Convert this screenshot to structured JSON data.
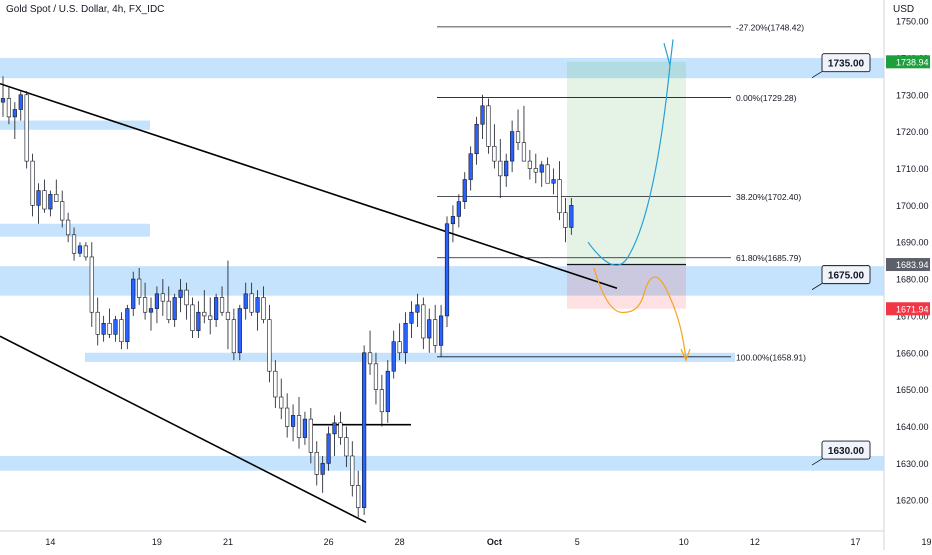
{
  "header": {
    "symbol_line": "Gold Spot / U.S. Dollar, 4h, FX_IDC"
  },
  "price_axis": {
    "currency": "USD"
  },
  "colors": {
    "bull": "#2962ff",
    "bear": "#ffffff",
    "wick": "#131722",
    "zone": "#bbdefb",
    "target": "#4caf50",
    "stop": "#f23645",
    "path_up": "#29a0d8",
    "path_down": "#f7a21b",
    "level_price_badge_green": "#1e9e3c",
    "level_price_badge_gray": "#5d606b",
    "level_price_badge_red": "#f23645"
  },
  "chart_data": {
    "type": "candlestick",
    "title": "Gold Spot / U.S. Dollar, 4h, FX_IDC",
    "ylabel": "USD",
    "ylim": [
      1613,
      1753
    ],
    "y_ticks": [
      1620,
      1630,
      1640,
      1650,
      1660,
      1670,
      1680,
      1690,
      1700,
      1710,
      1720,
      1730,
      1740,
      1750
    ],
    "x_ticks": [
      {
        "label": "14",
        "bar": 8
      },
      {
        "label": "19",
        "bar": 26
      },
      {
        "label": "21",
        "bar": 38
      },
      {
        "label": "26",
        "bar": 55
      },
      {
        "label": "28",
        "bar": 67
      },
      {
        "label": "Oct",
        "bar": 83
      },
      {
        "label": "5",
        "bar": 97
      },
      {
        "label": "10",
        "bar": 115
      },
      {
        "label": "12",
        "bar": 127
      },
      {
        "label": "17",
        "bar": 144
      },
      {
        "label": "19",
        "bar": 156
      }
    ],
    "ohlc": [
      [
        1728,
        1735,
        1724,
        1729
      ],
      [
        1729,
        1732,
        1722,
        1724
      ],
      [
        1724,
        1728,
        1718,
        1726
      ],
      [
        1726,
        1731,
        1723,
        1730
      ],
      [
        1730,
        1731,
        1710,
        1712
      ],
      [
        1712,
        1714,
        1697,
        1700
      ],
      [
        1700,
        1706,
        1695,
        1704
      ],
      [
        1704,
        1707,
        1698,
        1699
      ],
      [
        1699,
        1704,
        1697,
        1703
      ],
      [
        1703,
        1707,
        1701,
        1701
      ],
      [
        1701,
        1704,
        1694,
        1696
      ],
      [
        1696,
        1698,
        1690,
        1692
      ],
      [
        1692,
        1694,
        1685,
        1687
      ],
      [
        1687,
        1690,
        1686,
        1689
      ],
      [
        1689,
        1690,
        1685,
        1686
      ],
      [
        1686,
        1690,
        1667,
        1671
      ],
      [
        1671,
        1675,
        1662,
        1665
      ],
      [
        1665,
        1670,
        1663,
        1668
      ],
      [
        1668,
        1672,
        1664,
        1665
      ],
      [
        1665,
        1670,
        1663,
        1669
      ],
      [
        1669,
        1671,
        1661,
        1663
      ],
      [
        1663,
        1673,
        1661,
        1672
      ],
      [
        1672,
        1682,
        1670,
        1680
      ],
      [
        1680,
        1683,
        1673,
        1675
      ],
      [
        1675,
        1679,
        1669,
        1671
      ],
      [
        1671,
        1675,
        1666,
        1672
      ],
      [
        1672,
        1678,
        1668,
        1676
      ],
      [
        1676,
        1680,
        1670,
        1674
      ],
      [
        1674,
        1678,
        1668,
        1669
      ],
      [
        1669,
        1676,
        1667,
        1675
      ],
      [
        1675,
        1680,
        1671,
        1677
      ],
      [
        1677,
        1679,
        1669,
        1673
      ],
      [
        1673,
        1675,
        1664,
        1666
      ],
      [
        1666,
        1674,
        1664,
        1671
      ],
      [
        1671,
        1677,
        1668,
        1670
      ],
      [
        1670,
        1675,
        1665,
        1669
      ],
      [
        1669,
        1676,
        1667,
        1675
      ],
      [
        1675,
        1678,
        1670,
        1671
      ],
      [
        1671,
        1685,
        1661,
        1669
      ],
      [
        1669,
        1672,
        1658,
        1660
      ],
      [
        1660,
        1673,
        1658,
        1672
      ],
      [
        1672,
        1679,
        1669,
        1676
      ],
      [
        1676,
        1679,
        1670,
        1671
      ],
      [
        1671,
        1677,
        1666,
        1675
      ],
      [
        1675,
        1678,
        1668,
        1669
      ],
      [
        1669,
        1673,
        1652,
        1655
      ],
      [
        1655,
        1658,
        1645,
        1648
      ],
      [
        1648,
        1653,
        1642,
        1645
      ],
      [
        1645,
        1649,
        1637,
        1640
      ],
      [
        1640,
        1646,
        1636,
        1643
      ],
      [
        1643,
        1648,
        1634,
        1637
      ],
      [
        1637,
        1644,
        1635,
        1642
      ],
      [
        1642,
        1645,
        1630,
        1633
      ],
      [
        1633,
        1636,
        1624,
        1627
      ],
      [
        1627,
        1632,
        1622,
        1630
      ],
      [
        1630,
        1640,
        1628,
        1638
      ],
      [
        1638,
        1643,
        1632,
        1641
      ],
      [
        1641,
        1644,
        1635,
        1637
      ],
      [
        1637,
        1640,
        1629,
        1632
      ],
      [
        1632,
        1636,
        1621,
        1624
      ],
      [
        1624,
        1628,
        1615,
        1618
      ],
      [
        1618,
        1662,
        1616,
        1660
      ],
      [
        1660,
        1666,
        1654,
        1657
      ],
      [
        1657,
        1660,
        1646,
        1650
      ],
      [
        1650,
        1654,
        1640,
        1644
      ],
      [
        1644,
        1658,
        1641,
        1655
      ],
      [
        1655,
        1666,
        1653,
        1663
      ],
      [
        1663,
        1668,
        1658,
        1660
      ],
      [
        1660,
        1671,
        1657,
        1668
      ],
      [
        1668,
        1674,
        1664,
        1671
      ],
      [
        1671,
        1676,
        1667,
        1673
      ],
      [
        1673,
        1675,
        1661,
        1664
      ],
      [
        1664,
        1672,
        1660,
        1669
      ],
      [
        1669,
        1673,
        1660,
        1662
      ],
      [
        1662,
        1673,
        1659,
        1670
      ],
      [
        1670,
        1697,
        1667,
        1695
      ],
      [
        1695,
        1700,
        1690,
        1697
      ],
      [
        1697,
        1703,
        1694,
        1701
      ],
      [
        1701,
        1709,
        1699,
        1707
      ],
      [
        1707,
        1716,
        1704,
        1714
      ],
      [
        1714,
        1724,
        1711,
        1722
      ],
      [
        1722,
        1730,
        1718,
        1727
      ],
      [
        1727,
        1729,
        1714,
        1716
      ],
      [
        1716,
        1722,
        1710,
        1712
      ],
      [
        1712,
        1718,
        1702,
        1708
      ],
      [
        1708,
        1714,
        1705,
        1712
      ],
      [
        1712,
        1723,
        1709,
        1720
      ],
      [
        1720,
        1726,
        1715,
        1717
      ],
      [
        1717,
        1727,
        1712,
        1712
      ],
      [
        1712,
        1715,
        1707,
        1710
      ],
      [
        1710,
        1714,
        1706,
        1709
      ],
      [
        1709,
        1712,
        1705,
        1711
      ],
      [
        1711,
        1713,
        1707,
        1706
      ],
      [
        1706,
        1710,
        1703,
        1707
      ],
      [
        1707,
        1712,
        1696,
        1698
      ],
      [
        1698,
        1702,
        1690,
        1694
      ],
      [
        1694,
        1702,
        1692,
        1700
      ]
    ],
    "bars_note_omitted": "",
    "zones": [
      {
        "from": 1734.5,
        "to": 1740
      },
      {
        "from": 1675.5,
        "to": 1683.5
      },
      {
        "from": 1628,
        "to": 1632
      }
    ],
    "fib_levels": [
      {
        "label": "-27.20%(1748.42)",
        "price": 1748.42
      },
      {
        "label": "0.00%(1729.28)",
        "price": 1729.28
      },
      {
        "label": "38.20%(1702.40)",
        "price": 1702.4
      },
      {
        "label": "61.80%(1685.79)",
        "price": 1685.79
      },
      {
        "label": "100.00%(1658.91)",
        "price": 1658.91
      }
    ],
    "level_callouts": [
      "1735.00",
      "1675.00",
      "1630.00"
    ],
    "axis_badges": [
      {
        "text": "1738.94",
        "price": 1738.94,
        "kind": "green"
      },
      {
        "text": "1683.94",
        "price": 1683.94,
        "kind": "gray"
      },
      {
        "text": "1671.94",
        "price": 1671.94,
        "kind": "red"
      }
    ],
    "position": {
      "entry": 1683.94,
      "target": 1738.94,
      "stop": 1671.94
    }
  }
}
